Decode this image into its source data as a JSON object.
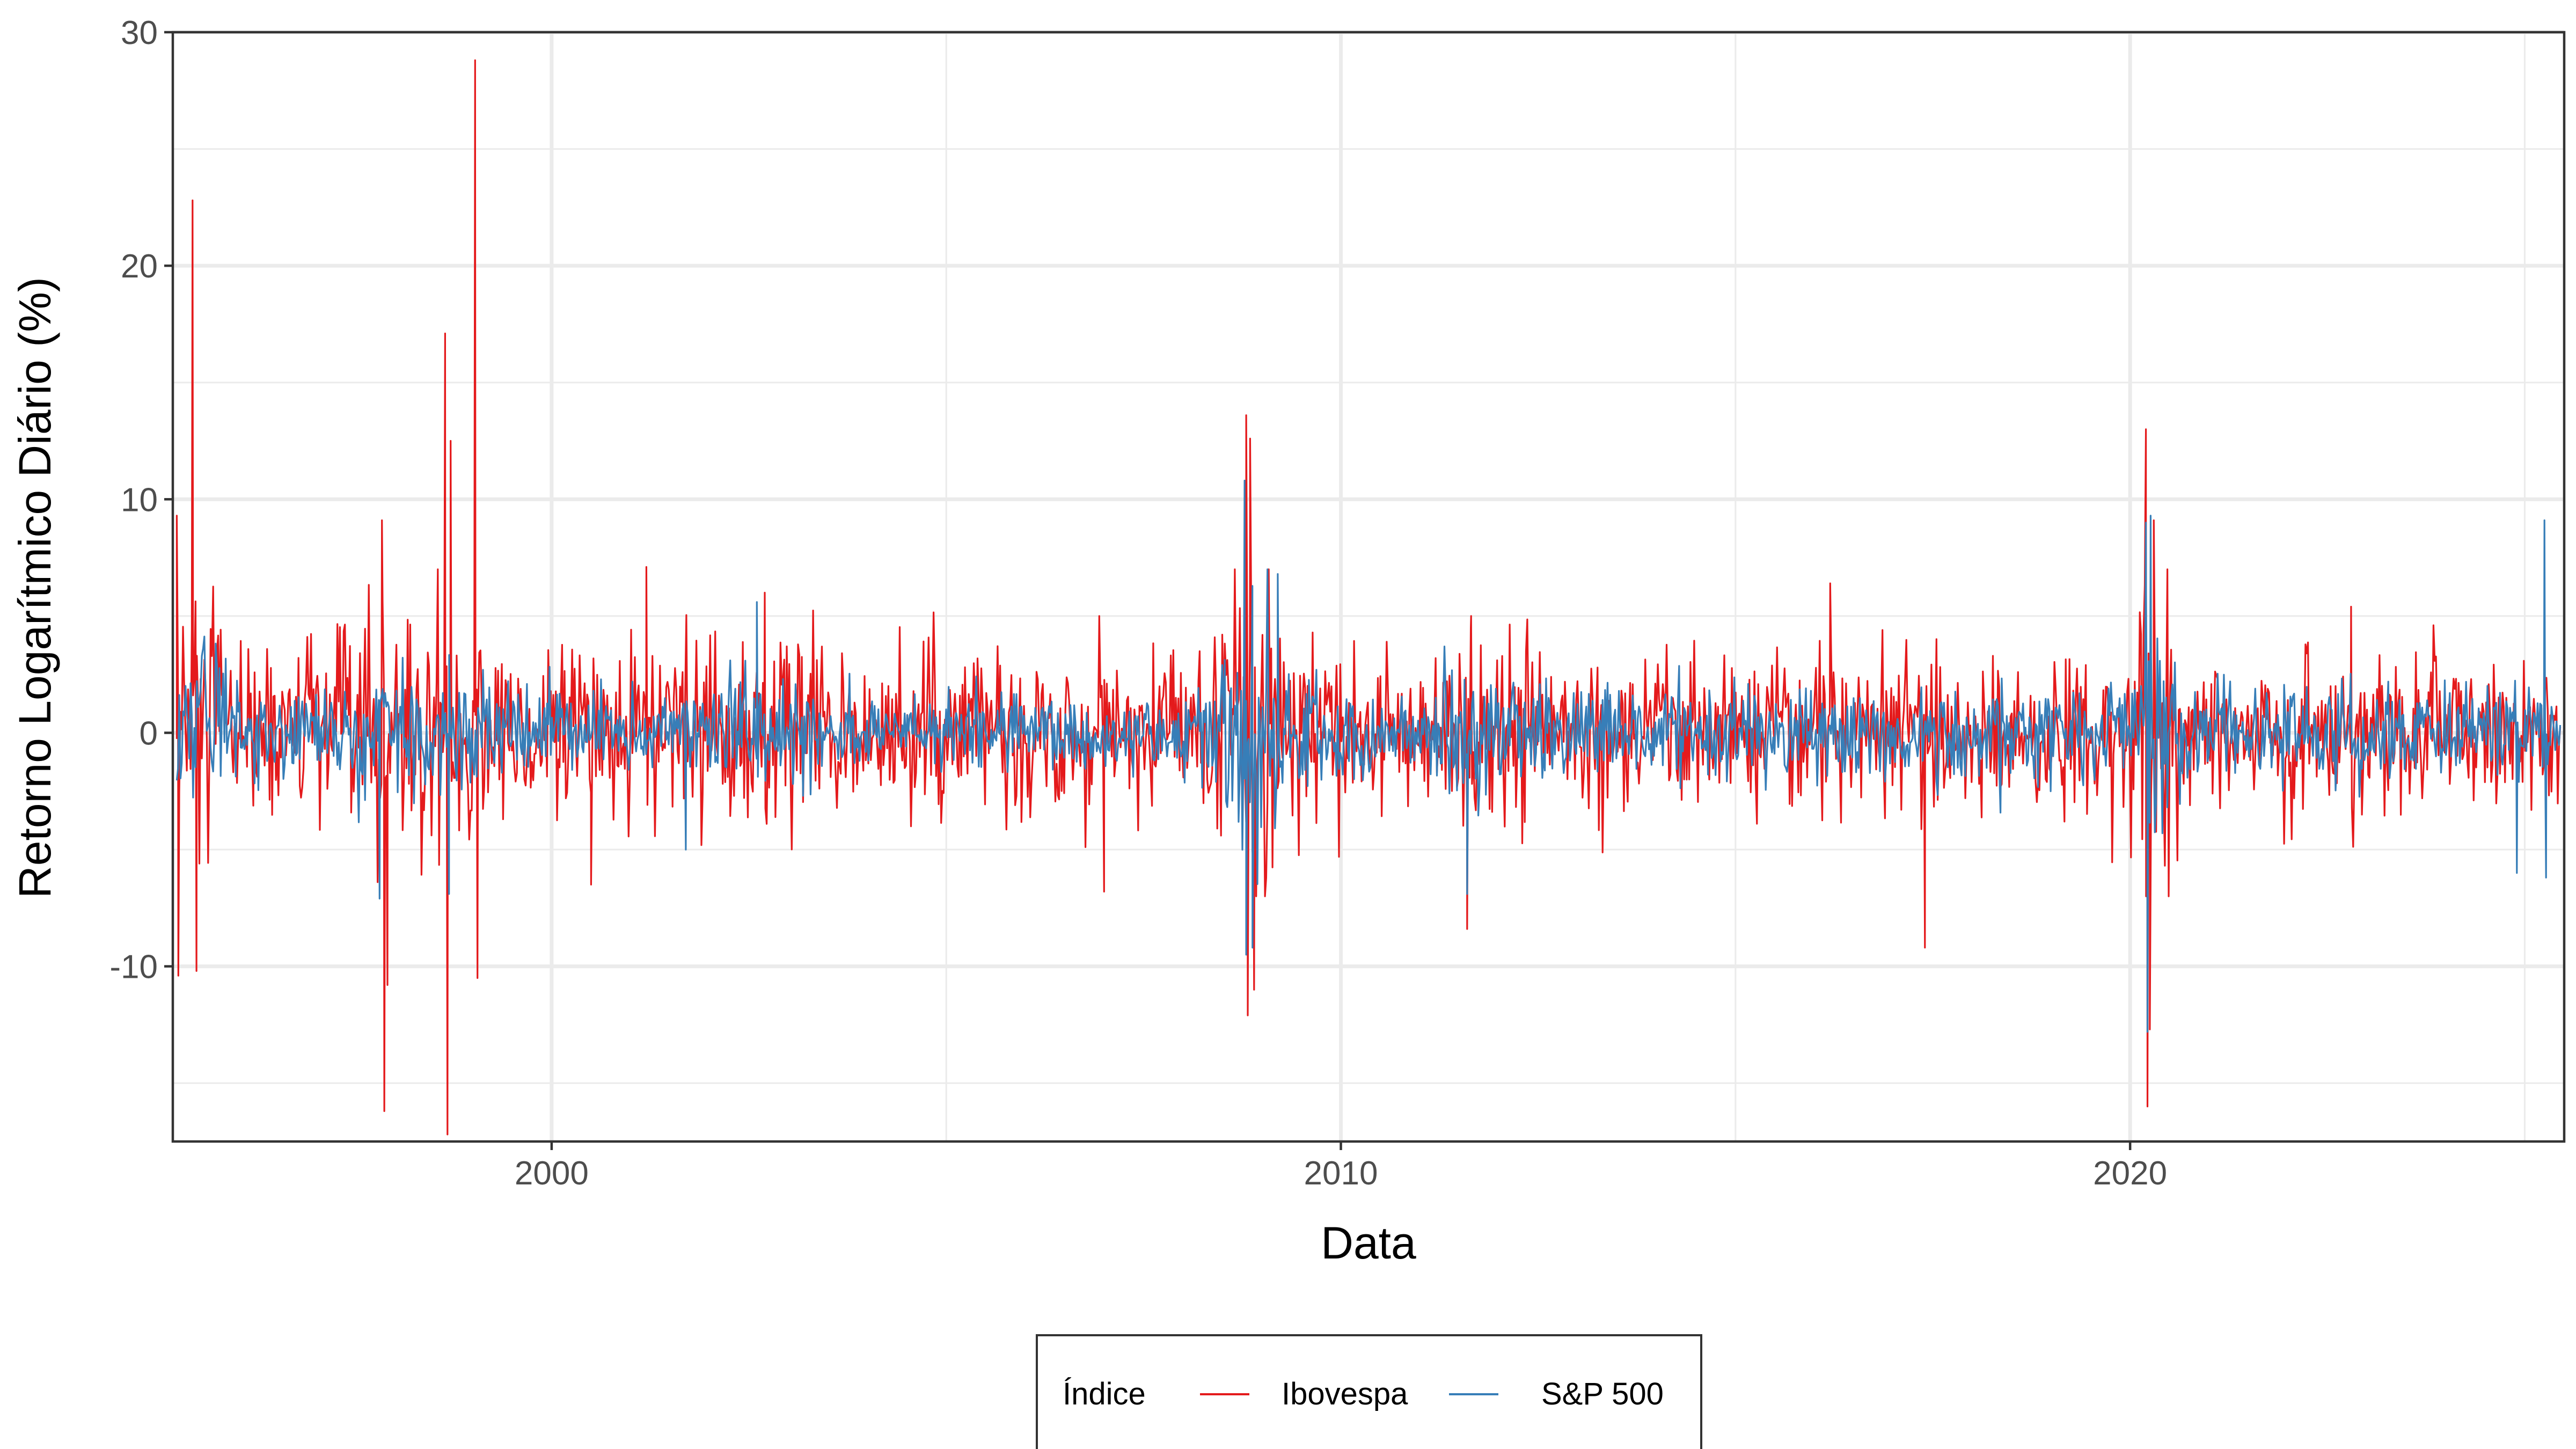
{
  "chart_data": {
    "type": "line",
    "xlabel": "Data",
    "ylabel": "Retorno Logarítmico Diário (%)",
    "xlim": [
      1995.2,
      2025.5
    ],
    "ylim": [
      -17.5,
      30
    ],
    "x_ticks": [
      2000,
      2010,
      2020
    ],
    "x_tick_labels": [
      "2000",
      "2010",
      "2020"
    ],
    "y_ticks": [
      -10,
      0,
      10,
      20,
      30
    ],
    "y_tick_labels": [
      "-10",
      "0",
      "10",
      "20",
      "30"
    ],
    "grid": true,
    "legend": {
      "title": "Índice",
      "position": "bottom"
    },
    "series": [
      {
        "name": "Ibovespa",
        "color": "#E41A1C",
        "base_volatility": 1.7,
        "spikes": [
          {
            "x": 1995.25,
            "y": 9.3
          },
          {
            "x": 1995.27,
            "y": -10.4
          },
          {
            "x": 1995.45,
            "y": 22.8
          },
          {
            "x": 1995.5,
            "y": -10.2
          },
          {
            "x": 1997.85,
            "y": 9.1
          },
          {
            "x": 1997.88,
            "y": -16.2
          },
          {
            "x": 1997.92,
            "y": -10.8
          },
          {
            "x": 1998.65,
            "y": 17.1
          },
          {
            "x": 1998.68,
            "y": -17.2
          },
          {
            "x": 1998.72,
            "y": 12.5
          },
          {
            "x": 1999.03,
            "y": 28.8
          },
          {
            "x": 1999.06,
            "y": -10.5
          },
          {
            "x": 2000.5,
            "y": -6.5
          },
          {
            "x": 2001.2,
            "y": 7.1
          },
          {
            "x": 2002.7,
            "y": 6.0
          },
          {
            "x": 2007.0,
            "y": -6.8
          },
          {
            "x": 2008.8,
            "y": 13.6
          },
          {
            "x": 2008.82,
            "y": -12.1
          },
          {
            "x": 2008.85,
            "y": 12.6
          },
          {
            "x": 2008.9,
            "y": -11.0
          },
          {
            "x": 2011.6,
            "y": -8.4
          },
          {
            "x": 2011.65,
            "y": 5.0
          },
          {
            "x": 2016.2,
            "y": 6.4
          },
          {
            "x": 2017.4,
            "y": -9.2
          },
          {
            "x": 2020.2,
            "y": 13.0
          },
          {
            "x": 2020.22,
            "y": -16.0
          },
          {
            "x": 2020.25,
            "y": -12.7
          },
          {
            "x": 2020.3,
            "y": 9.1
          },
          {
            "x": 2022.8,
            "y": 5.4
          }
        ]
      },
      {
        "name": "S&P 500",
        "color": "#377EB8",
        "base_volatility": 0.9,
        "spikes": [
          {
            "x": 1997.82,
            "y": -7.1
          },
          {
            "x": 1998.7,
            "y": -6.9
          },
          {
            "x": 2001.7,
            "y": -5.0
          },
          {
            "x": 2002.6,
            "y": 5.6
          },
          {
            "x": 2008.78,
            "y": 10.8
          },
          {
            "x": 2008.8,
            "y": -9.5
          },
          {
            "x": 2008.88,
            "y": -9.2
          },
          {
            "x": 2009.2,
            "y": 6.8
          },
          {
            "x": 2011.6,
            "y": -6.9
          },
          {
            "x": 2020.2,
            "y": 9.0
          },
          {
            "x": 2020.22,
            "y": -12.8
          },
          {
            "x": 2020.26,
            "y": 9.3
          },
          {
            "x": 2024.9,
            "y": -6.0
          },
          {
            "x": 2025.25,
            "y": 9.1
          },
          {
            "x": 2025.27,
            "y": -6.2
          }
        ]
      }
    ]
  }
}
